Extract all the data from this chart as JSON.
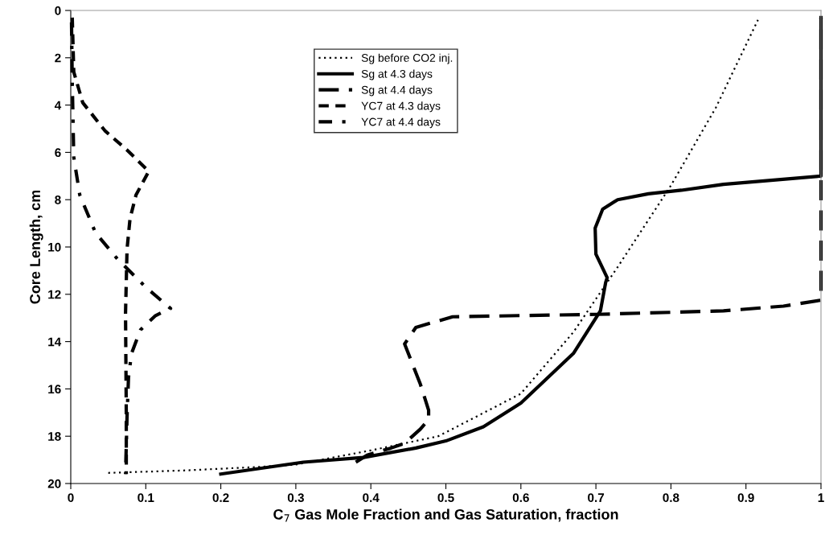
{
  "chart_data": {
    "type": "line",
    "xlabel": "C$_{7}$ Gas Mole Fraction and Gas Saturation, fraction",
    "ylabel": "Core Length, cm",
    "xlim": [
      0,
      1
    ],
    "xticks": [
      0,
      0.1,
      0.2,
      0.3,
      0.4,
      0.5,
      0.6,
      0.7,
      0.8,
      0.9,
      1
    ],
    "ylim": [
      20,
      0
    ],
    "yticks": [
      0,
      2,
      4,
      6,
      8,
      10,
      12,
      14,
      16,
      18,
      20
    ],
    "grid": false,
    "legend": "top",
    "marker": "none",
    "series": [
      {
        "name": "Sg before CO2 inj.",
        "color": "#000000",
        "line_style": "dotted",
        "x": [
          0.05,
          0.15,
          0.25,
          0.3,
          0.35,
          0.4,
          0.49,
          0.6,
          0.67,
          0.73,
          0.8,
          0.86,
          0.916
        ],
        "values": [
          19.55,
          19.45,
          19.3,
          19.2,
          18.9,
          18.6,
          18.0,
          16.2,
          13.6,
          10.8,
          7.4,
          4.1,
          0.4
        ]
      },
      {
        "name": "Sg at 4.3 days",
        "color": "#000000",
        "line_style": "solid",
        "x": [
          0.2,
          0.31,
          0.39,
          0.46,
          0.5,
          0.55,
          0.6,
          0.67,
          0.706,
          0.713,
          0.715,
          0.7,
          0.699,
          0.709,
          0.729,
          0.77,
          0.814,
          0.87,
          1.0,
          1.0
        ],
        "values": [
          19.6,
          19.1,
          18.9,
          18.5,
          18.2,
          17.6,
          16.6,
          14.5,
          12.7,
          11.5,
          11.3,
          10.3,
          9.2,
          8.4,
          8.0,
          7.75,
          7.6,
          7.35,
          7.0,
          0.3
        ]
      },
      {
        "name": "Sg at 4.4 days",
        "color": "#000000",
        "line_style": "longdash",
        "x": [
          0.38,
          0.395,
          0.427,
          0.445,
          0.466,
          0.477,
          0.477,
          0.466,
          0.445,
          0.46,
          0.509,
          0.6,
          0.7,
          0.87,
          0.95,
          1.0,
          1.0
        ],
        "values": [
          19.1,
          18.8,
          18.5,
          18.3,
          17.7,
          17.3,
          16.9,
          15.8,
          14.1,
          13.4,
          12.95,
          12.9,
          12.85,
          12.7,
          12.5,
          12.25,
          0.3
        ]
      },
      {
        "name": "YC7 at 4.3 days",
        "color": "#000000",
        "line_style": "dashed",
        "x": [
          0.002,
          0.004,
          0.016,
          0.046,
          0.075,
          0.104,
          0.087,
          0.079,
          0.075,
          0.073,
          0.074,
          0.074
        ],
        "values": [
          0.3,
          2.6,
          3.9,
          5.1,
          5.9,
          6.8,
          7.8,
          8.8,
          10.1,
          12.8,
          17.0,
          19.6
        ]
      },
      {
        "name": "YC7 at 4.4 days",
        "color": "#000000",
        "line_style": "dashdot",
        "x": [
          0.001,
          0.002,
          0.004,
          0.012,
          0.033,
          0.062,
          0.1,
          0.133,
          0.113,
          0.093,
          0.081,
          0.077,
          0.075,
          0.073
        ],
        "values": [
          0.5,
          3.0,
          6.2,
          7.8,
          9.4,
          10.5,
          11.7,
          12.6,
          12.9,
          13.5,
          14.5,
          15.5,
          17.2,
          19.6
        ]
      }
    ]
  }
}
